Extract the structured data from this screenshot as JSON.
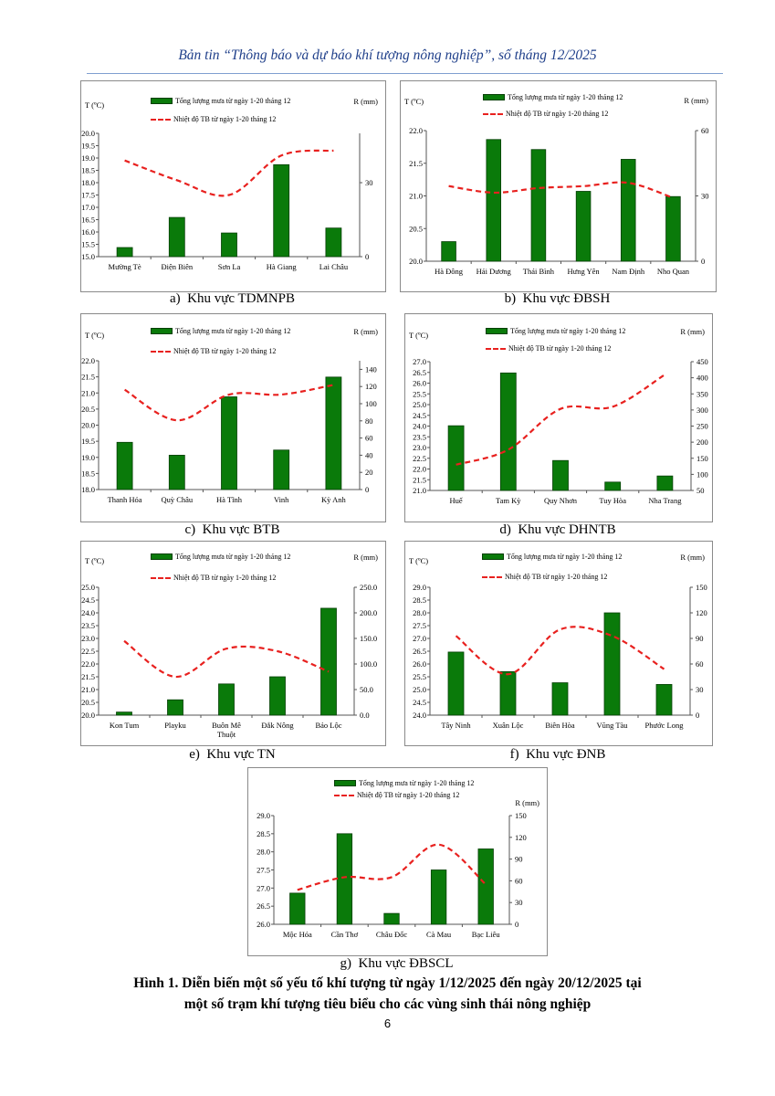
{
  "header": {
    "title": "Bản tin “Thông báo và dự báo khí tượng nông nghiệp”, số tháng 12/2025"
  },
  "figure": {
    "title_line1": "Hình 1. Diễn biến một số yếu tố khí tượng từ ngày 1/12/2025 đến ngày 20/12/2025 tại",
    "title_line2": "một số trạm khí tượng tiêu biểu cho các vùng sinh thái nông nghiệp"
  },
  "page_number": "6",
  "colors": {
    "bar": "#0a7a0a",
    "bar_border": "#063f06",
    "line": "#e8211f",
    "header": "#1f3f8a"
  },
  "chart_data": [
    {
      "type": "bar+line",
      "caption": "a)  Khu vực TDMNPB",
      "legend_bar": "Tổng lượng mưa từ ngày 1-20 tháng 12",
      "legend_line": "Nhiệt độ TB từ ngày 1-20 tháng 12",
      "ylabel_left": "T (ºC)",
      "ylabel_right": "R (mm)",
      "categories": [
        "Mường Tè",
        "Điện Biên",
        "Sơn La",
        "Hà Giang",
        "Lai Châu"
      ],
      "rain_mm": [
        3.7,
        15.9,
        9.6,
        37.3,
        11.6
      ],
      "temp_c": [
        18.9,
        18.1,
        17.5,
        19.1,
        19.3
      ],
      "ylim_left": [
        15,
        20
      ],
      "left_ticks": [
        15,
        15.5,
        16,
        16.5,
        17,
        17.5,
        18,
        18.5,
        19,
        19.5,
        20
      ],
      "ylim_right": [
        0,
        50
      ],
      "right_ticks": [
        0,
        30
      ],
      "right_decimals": 0
    },
    {
      "type": "bar+line",
      "caption": "b)  Khu vực ĐBSH",
      "legend_bar": "Tổng lượng mưa từ ngày 1-20 tháng 12",
      "legend_line": "Nhiệt độ TB từ ngày 1-20 tháng 12",
      "ylabel_left": "T (ºC)",
      "ylabel_right": "R (mm)",
      "categories": [
        "Hà Đông",
        "Hải Dương",
        "Thái Bình",
        "Hưng Yên",
        "Nam Định",
        "Nho Quan"
      ],
      "rain_mm": [
        9,
        55.9,
        51.3,
        32.1,
        46.8,
        29.7
      ],
      "temp_c": [
        21.15,
        21.05,
        21.12,
        21.15,
        21.2,
        20.97
      ],
      "ylim_left": [
        20,
        22
      ],
      "left_ticks": [
        20,
        20.5,
        21,
        21.5,
        22
      ],
      "ylim_right": [
        0,
        60
      ],
      "right_ticks": [
        0,
        30,
        60
      ],
      "right_decimals": 0
    },
    {
      "type": "bar+line",
      "caption": "c)  Khu vực BTB",
      "legend_bar": "Tổng lượng mưa từ ngày 1-20 tháng 12",
      "legend_line": "Nhiệt độ TB từ ngày 1-20 tháng 12",
      "ylabel_left": "T (ºC)",
      "ylabel_right": "R (mm)",
      "categories": [
        "Thanh Hóa",
        "Quỳ Châu",
        "Hà Tĩnh",
        "Vinh",
        "Kỳ Anh"
      ],
      "rain_mm": [
        55,
        40,
        108,
        46,
        131
      ],
      "temp_c": [
        21.1,
        20.15,
        20.95,
        20.95,
        21.25
      ],
      "ylim_left": [
        18,
        22
      ],
      "left_ticks": [
        18,
        18.5,
        19,
        19.5,
        20,
        20.5,
        21,
        21.5,
        22
      ],
      "ylim_right": [
        0,
        150
      ],
      "right_ticks": [
        0,
        20,
        40,
        60,
        80,
        100,
        120,
        140
      ],
      "right_decimals": 0
    },
    {
      "type": "bar+line",
      "caption": "d)  Khu vực DHNTB",
      "legend_bar": "Tổng lượng mưa từ ngày 1-20 tháng 12",
      "legend_line": "Nhiệt độ TB từ ngày 1-20 tháng 12",
      "ylabel_left": "T (ºC)",
      "ylabel_right": "R (mm)",
      "categories": [
        "Huế",
        "Tam Kỳ",
        "Quy Nhơn",
        "Tuy Hòa",
        "Nha Trang"
      ],
      "rain_mm": [
        251,
        415,
        143,
        76,
        95
      ],
      "temp_c": [
        22.2,
        22.9,
        24.8,
        24.9,
        26.4
      ],
      "ylim_left": [
        21,
        27
      ],
      "left_ticks": [
        21,
        21.5,
        22,
        22.5,
        23,
        23.5,
        24,
        24.5,
        25,
        25.5,
        26,
        26.5,
        27
      ],
      "ylim_right": [
        50,
        450
      ],
      "right_ticks": [
        50,
        100,
        150,
        200,
        250,
        300,
        350,
        400,
        450
      ],
      "right_decimals": 0
    },
    {
      "type": "bar+line",
      "caption": "e)  Khu vực TN",
      "legend_bar": "Tổng lượng mưa từ ngày 1-20 tháng 12",
      "legend_line": "Nhiệt độ TB từ ngày 1-20 tháng 12",
      "ylabel_left": "T (ºC)",
      "ylabel_right": "R (mm)",
      "categories": [
        "Kon Tum",
        "Playku",
        "Buôn Mê\nThuột",
        "Đắk Nông",
        "Bảo Lộc"
      ],
      "rain_mm": [
        6,
        30,
        61,
        75,
        209
      ],
      "temp_c": [
        22.9,
        21.5,
        22.6,
        22.5,
        21.7
      ],
      "ylim_left": [
        20,
        25
      ],
      "left_ticks": [
        20,
        20.5,
        21,
        21.5,
        22,
        22.5,
        23,
        23.5,
        24,
        24.5,
        25
      ],
      "ylim_right": [
        0,
        250
      ],
      "right_ticks": [
        0,
        50,
        100,
        150,
        200,
        250
      ],
      "right_decimals": 1
    },
    {
      "type": "bar+line",
      "caption": "f)  Khu vực ĐNB",
      "legend_bar": "Tổng lượng mưa từ ngày 1-20 tháng 12",
      "legend_line": "Nhiệt độ TB từ ngày 1-20 tháng 12",
      "ylabel_left": "T (ºC)",
      "ylabel_right": "R (mm)",
      "categories": [
        "Tây Ninh",
        "Xuân Lộc",
        "Biên Hòa",
        "Vũng Tàu",
        "Phước Long"
      ],
      "rain_mm": [
        74,
        51,
        38,
        120,
        36
      ],
      "temp_c": [
        27.1,
        25.6,
        27.35,
        27.1,
        25.8
      ],
      "ylim_left": [
        24,
        29
      ],
      "left_ticks": [
        24,
        24.5,
        25,
        25.5,
        26,
        26.5,
        27,
        27.5,
        28,
        28.5,
        29
      ],
      "ylim_right": [
        0,
        150
      ],
      "right_ticks": [
        0,
        30,
        60,
        90,
        120,
        150
      ],
      "right_decimals": 0
    },
    {
      "type": "bar+line",
      "caption": "g)  Khu vực ĐBSCL",
      "legend_bar": "Tổng lượng mưa từ ngày 1-20 tháng 12",
      "legend_line": "Nhiệt độ TB từ ngày 1-20 tháng 12",
      "ylabel_right": "R (mm)",
      "categories": [
        "Mộc Hóa",
        "Cần Thơ",
        "Châu Đốc",
        "Cà Mau",
        "Bạc Liêu"
      ],
      "rain_mm": [
        43,
        125,
        15,
        75,
        104
      ],
      "temp_c": [
        26.95,
        27.3,
        27.3,
        28.2,
        27.1
      ],
      "ylim_left": [
        26,
        29
      ],
      "left_ticks": [
        26,
        26.5,
        27,
        27.5,
        28,
        28.5,
        29
      ],
      "ylim_right": [
        0,
        150
      ],
      "right_ticks": [
        0,
        30,
        60,
        90,
        120,
        150
      ],
      "right_decimals": 0
    }
  ]
}
